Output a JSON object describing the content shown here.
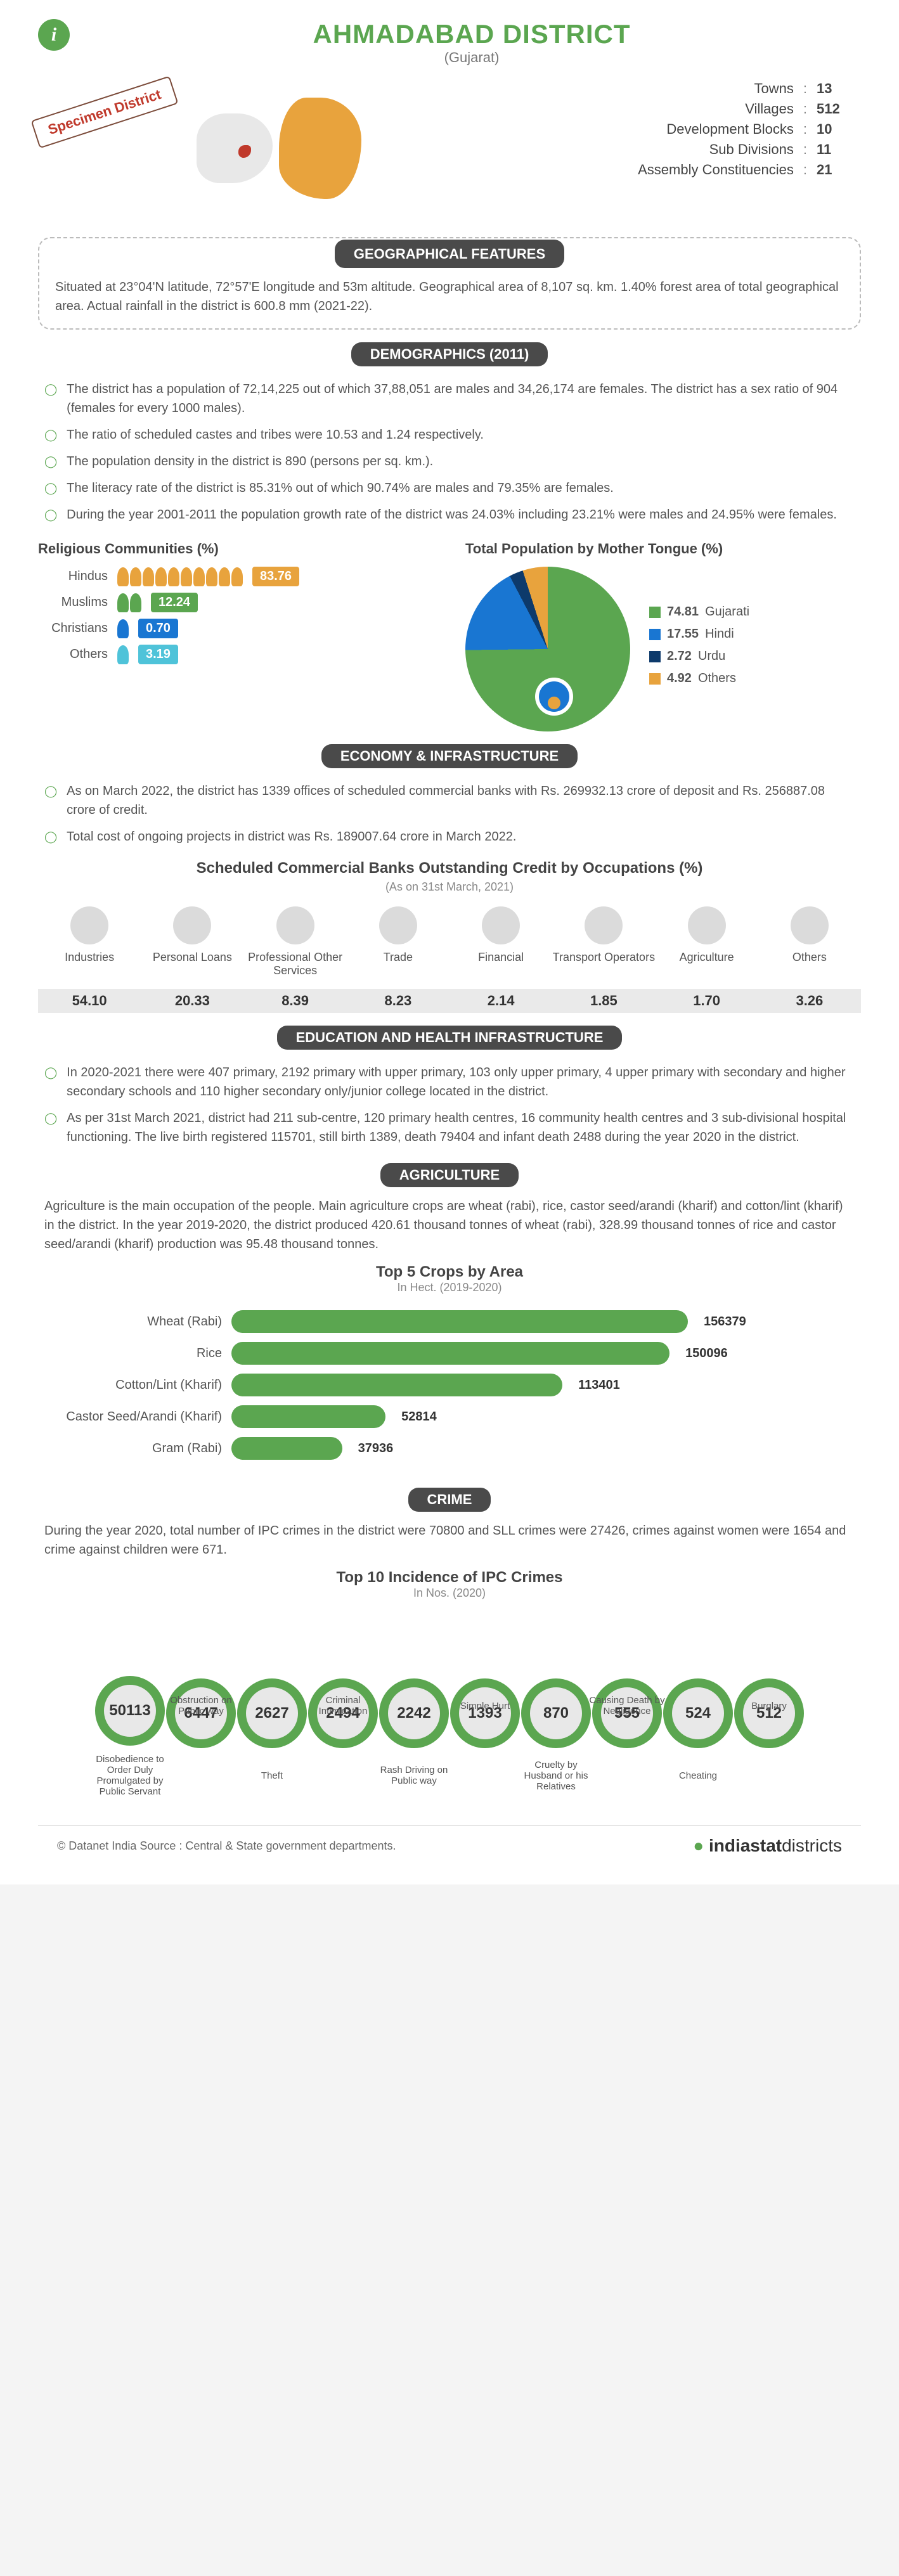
{
  "header": {
    "title": "AHMADABAD DISTRICT",
    "subtitle": "(Gujarat)",
    "specimen": "Specimen District"
  },
  "basic_stats": [
    {
      "label": "Towns",
      "value": "13"
    },
    {
      "label": "Villages",
      "value": "512"
    },
    {
      "label": "Development Blocks",
      "value": "10"
    },
    {
      "label": "Sub Divisions",
      "value": "11"
    },
    {
      "label": "Assembly Constituencies",
      "value": "21"
    }
  ],
  "sections": {
    "geo": {
      "title": "GEOGRAPHICAL FEATURES",
      "text": "Situated at 23°04'N latitude, 72°57'E longitude and 53m altitude. Geographical area of 8,107 sq. km. 1.40% forest area of total geographical area. Actual rainfall in the district is 600.8 mm (2021-22)."
    },
    "demo": {
      "title": "DEMOGRAPHICS (2011)",
      "bullets": [
        "The district has a population of 72,14,225 out of which 37,88,051 are males and 34,26,174 are females. The district has a sex ratio of 904 (females for every 1000 males).",
        "The ratio of scheduled castes and tribes were 10.53 and 1.24 respectively.",
        "The population density in the district is 890 (persons per sq. km.).",
        "The literacy rate of the district is 85.31% out of which 90.74% are males and 79.35% are females.",
        "During the year 2001-2011 the population growth rate of the district was 24.03% including 23.21% were males and 24.95% were females."
      ],
      "religious_title": "Religious Communities (%)",
      "religious": [
        {
          "label": "Hindus",
          "value": "83.76",
          "count": 10,
          "color": "#e8a33d"
        },
        {
          "label": "Muslims",
          "value": "12.24",
          "count": 2,
          "color": "#5ba650"
        },
        {
          "label": "Christians",
          "value": "0.70",
          "count": 1,
          "color": "#1976d2"
        },
        {
          "label": "Others",
          "value": "3.19",
          "count": 1,
          "color": "#4fc3d9"
        }
      ],
      "tongue_title": "Total Population by Mother Tongue (%)",
      "tongue": [
        {
          "label": "Gujarati",
          "value": "74.81",
          "color": "#5ba650"
        },
        {
          "label": "Hindi",
          "value": "17.55",
          "color": "#1976d2"
        },
        {
          "label": "Urdu",
          "value": "2.72",
          "color": "#0d3a6b"
        },
        {
          "label": "Others",
          "value": "4.92",
          "color": "#e8a33d"
        }
      ],
      "pie_bg": "conic-gradient(#5ba650 0% 74.81%, #1976d2 74.81% 92.36%, #0d3a6b 92.36% 95.08%, #e8a33d 95.08% 100%)"
    },
    "econ": {
      "title": "ECONOMY & INFRASTRUCTURE",
      "bullets": [
        "As on March 2022, the district has 1339 offices of scheduled commercial banks with Rs. 269932.13 crore of deposit and Rs. 256887.08 crore of credit.",
        "Total cost of ongoing projects in district was Rs. 189007.64 crore in March 2022."
      ],
      "occ_title": "Scheduled Commercial Banks Outstanding Credit by Occupations (%)",
      "occ_subtitle": "(As on 31st March, 2021)",
      "occupations": [
        {
          "label": "Industries",
          "value": "54.10"
        },
        {
          "label": "Personal Loans",
          "value": "20.33"
        },
        {
          "label": "Professional Other Services",
          "value": "8.39"
        },
        {
          "label": "Trade",
          "value": "8.23"
        },
        {
          "label": "Financial",
          "value": "2.14"
        },
        {
          "label": "Transport Operators",
          "value": "1.85"
        },
        {
          "label": "Agriculture",
          "value": "1.70"
        },
        {
          "label": "Others",
          "value": "3.26"
        }
      ]
    },
    "edu": {
      "title": "EDUCATION AND HEALTH INFRASTRUCTURE",
      "bullets": [
        "In 2020-2021 there were 407 primary, 2192 primary with upper primary, 103 only upper primary, 4 upper primary with secondary and higher secondary schools and 110 higher secondary only/junior college located in the district.",
        "As per 31st March 2021, district had 211 sub-centre, 120 primary health centres, 16 community health centres and 3 sub-divisional hospital functioning. The live birth registered 115701, still birth 1389, death 79404 and infant death 2488 during the year 2020 in the district."
      ]
    },
    "agri": {
      "title": "AGRICULTURE",
      "text": "Agriculture is the main occupation of the people. Main agriculture crops are wheat (rabi), rice, castor seed/arandi (kharif) and cotton/lint (kharif) in the district. In the year 2019-2020, the district produced 420.61 thousand tonnes of wheat (rabi), 328.99 thousand tonnes of rice and castor seed/arandi (kharif) production was 95.48 thousand tonnes.",
      "chart_title": "Top 5 Crops by Area",
      "chart_sub": "In Hect. (2019-2020)",
      "max": 156379,
      "bar_color": "#5ba650",
      "crops": [
        {
          "label": "Wheat (Rabi)",
          "value": 156379
        },
        {
          "label": "Rice",
          "value": 150096
        },
        {
          "label": "Cotton/Lint (Kharif)",
          "value": 113401
        },
        {
          "label": "Castor Seed/Arandi (Kharif)",
          "value": 52814
        },
        {
          "label": "Gram (Rabi)",
          "value": 37936
        }
      ]
    },
    "crime": {
      "title": "CRIME",
      "text": "During the year 2020, total number of IPC crimes in the district were 70800 and SLL crimes were 27426, crimes against women were 1654 and crime against children were 671.",
      "chart_title": "Top 10 Incidence of IPC Crimes",
      "chart_sub": "In Nos. (2020)",
      "ring_color": "#5ba650",
      "crimes": [
        {
          "label": "Disobedience to Order Duly Promulgated by Public Servant",
          "value": "50113",
          "pos": "bottom"
        },
        {
          "label": "Obstruction on Public way",
          "value": "6447",
          "pos": "top"
        },
        {
          "label": "Theft",
          "value": "2627",
          "pos": "bottom"
        },
        {
          "label": "Criminal Intimidation",
          "value": "2494",
          "pos": "top"
        },
        {
          "label": "Rash Driving on Public way",
          "value": "2242",
          "pos": "bottom"
        },
        {
          "label": "Simple Hurt",
          "value": "1393",
          "pos": "top"
        },
        {
          "label": "Cruelty by Husband or his Relatives",
          "value": "870",
          "pos": "bottom"
        },
        {
          "label": "Causing Death by Negligence",
          "value": "555",
          "pos": "top"
        },
        {
          "label": "Cheating",
          "value": "524",
          "pos": "bottom"
        },
        {
          "label": "Burglary",
          "value": "512",
          "pos": "top"
        }
      ]
    }
  },
  "footer": {
    "source": "© Datanet India  Source : Central & State government departments.",
    "logo1": "indiastat",
    "logo2": "districts"
  }
}
